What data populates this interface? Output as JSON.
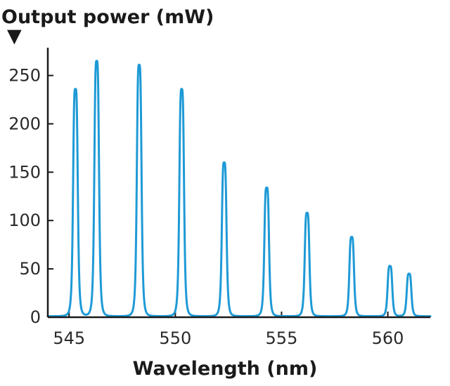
{
  "chart_data": {
    "type": "line",
    "ylabel": "Output power (mW)",
    "xlabel": "Wavelength (nm)",
    "xlim": [
      544,
      562
    ],
    "ylim": [
      0,
      270
    ],
    "xticks": [
      545,
      550,
      555,
      560
    ],
    "yticks": [
      0,
      50,
      100,
      150,
      200,
      250
    ],
    "ylabel_marker": "▼",
    "grid": false,
    "colors": {
      "series": "#1e9ad6",
      "axis": "#1a1a1a"
    },
    "baseline": 1,
    "peak_halfwidth_nm": 0.12,
    "peaks": [
      {
        "x": 545.3,
        "y": 236
      },
      {
        "x": 546.3,
        "y": 265
      },
      {
        "x": 548.3,
        "y": 261
      },
      {
        "x": 550.3,
        "y": 236
      },
      {
        "x": 552.3,
        "y": 160
      },
      {
        "x": 554.3,
        "y": 134
      },
      {
        "x": 556.2,
        "y": 108
      },
      {
        "x": 558.3,
        "y": 83
      },
      {
        "x": 560.1,
        "y": 53
      },
      {
        "x": 561.0,
        "y": 45
      }
    ]
  }
}
